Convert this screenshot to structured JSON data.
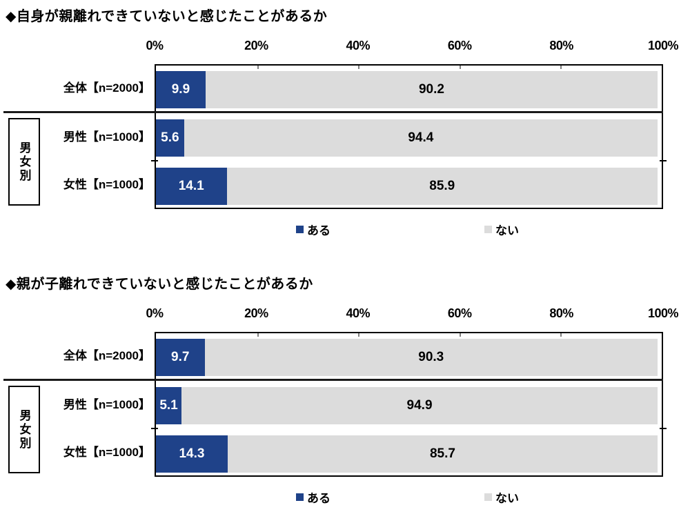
{
  "page": {
    "background": "#ffffff"
  },
  "colors": {
    "aru": "#1f4289",
    "nai": "#dcdcdc",
    "border": "#000000"
  },
  "chart_data": [
    {
      "type": "bar",
      "orientation": "horizontal",
      "stacked": true,
      "title": "◆自身が親離れできていないと感じたことがあるか",
      "categories": [
        "全体【n=2000】",
        "男性【n=1000】",
        "女性【n=1000】"
      ],
      "group_label": "男女別",
      "series": [
        {
          "name": "ある",
          "color": "#1f4289",
          "values": [
            9.9,
            5.6,
            14.1
          ]
        },
        {
          "name": "ない",
          "color": "#dcdcdc",
          "values": [
            90.2,
            94.4,
            85.9
          ]
        }
      ],
      "xlim": [
        0,
        100
      ],
      "x_ticks": [
        "0%",
        "20%",
        "40%",
        "60%",
        "80%",
        "100%"
      ],
      "legend_position": "bottom",
      "grid": false
    },
    {
      "type": "bar",
      "orientation": "horizontal",
      "stacked": true,
      "title": "◆親が子離れできていないと感じたことがあるか",
      "categories": [
        "全体【n=2000】",
        "男性【n=1000】",
        "女性【n=1000】"
      ],
      "group_label": "男女別",
      "series": [
        {
          "name": "ある",
          "color": "#1f4289",
          "values": [
            9.7,
            5.1,
            14.3
          ]
        },
        {
          "name": "ない",
          "color": "#dcdcdc",
          "values": [
            90.3,
            94.9,
            85.7
          ]
        }
      ],
      "xlim": [
        0,
        100
      ],
      "x_ticks": [
        "0%",
        "20%",
        "40%",
        "60%",
        "80%",
        "100%"
      ],
      "legend_position": "bottom",
      "grid": false
    }
  ]
}
